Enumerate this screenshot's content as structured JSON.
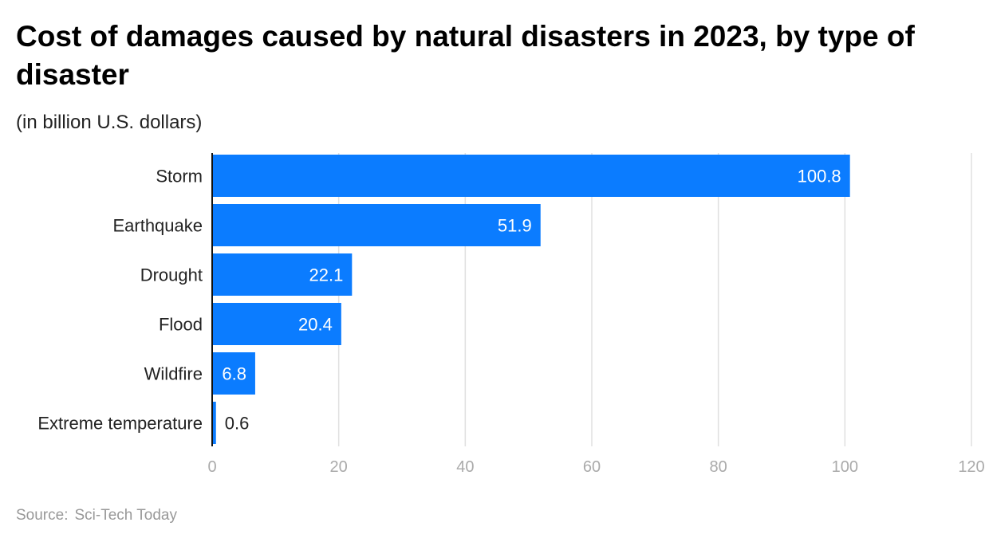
{
  "chart_data": {
    "type": "bar",
    "orientation": "horizontal",
    "title": "Cost of damages caused by natural disasters in 2023, by type of disaster",
    "subtitle": "(in billion U.S. dollars)",
    "categories": [
      "Storm",
      "Earthquake",
      "Drought",
      "Flood",
      "Wildfire",
      "Extreme temperature"
    ],
    "values": [
      100.8,
      51.9,
      22.1,
      20.4,
      6.8,
      0.6
    ],
    "value_labels": [
      "100.8",
      "51.9",
      "22.1",
      "20.4",
      "6.8",
      "0.6"
    ],
    "xlim": [
      0,
      120
    ],
    "xticks": [
      0,
      20,
      40,
      60,
      80,
      100,
      120
    ],
    "xlabel": "",
    "ylabel": "",
    "grid": true,
    "bar_color": "#0B7CFF"
  },
  "source": {
    "label": "Source:",
    "value": "Sci-Tech Today"
  }
}
